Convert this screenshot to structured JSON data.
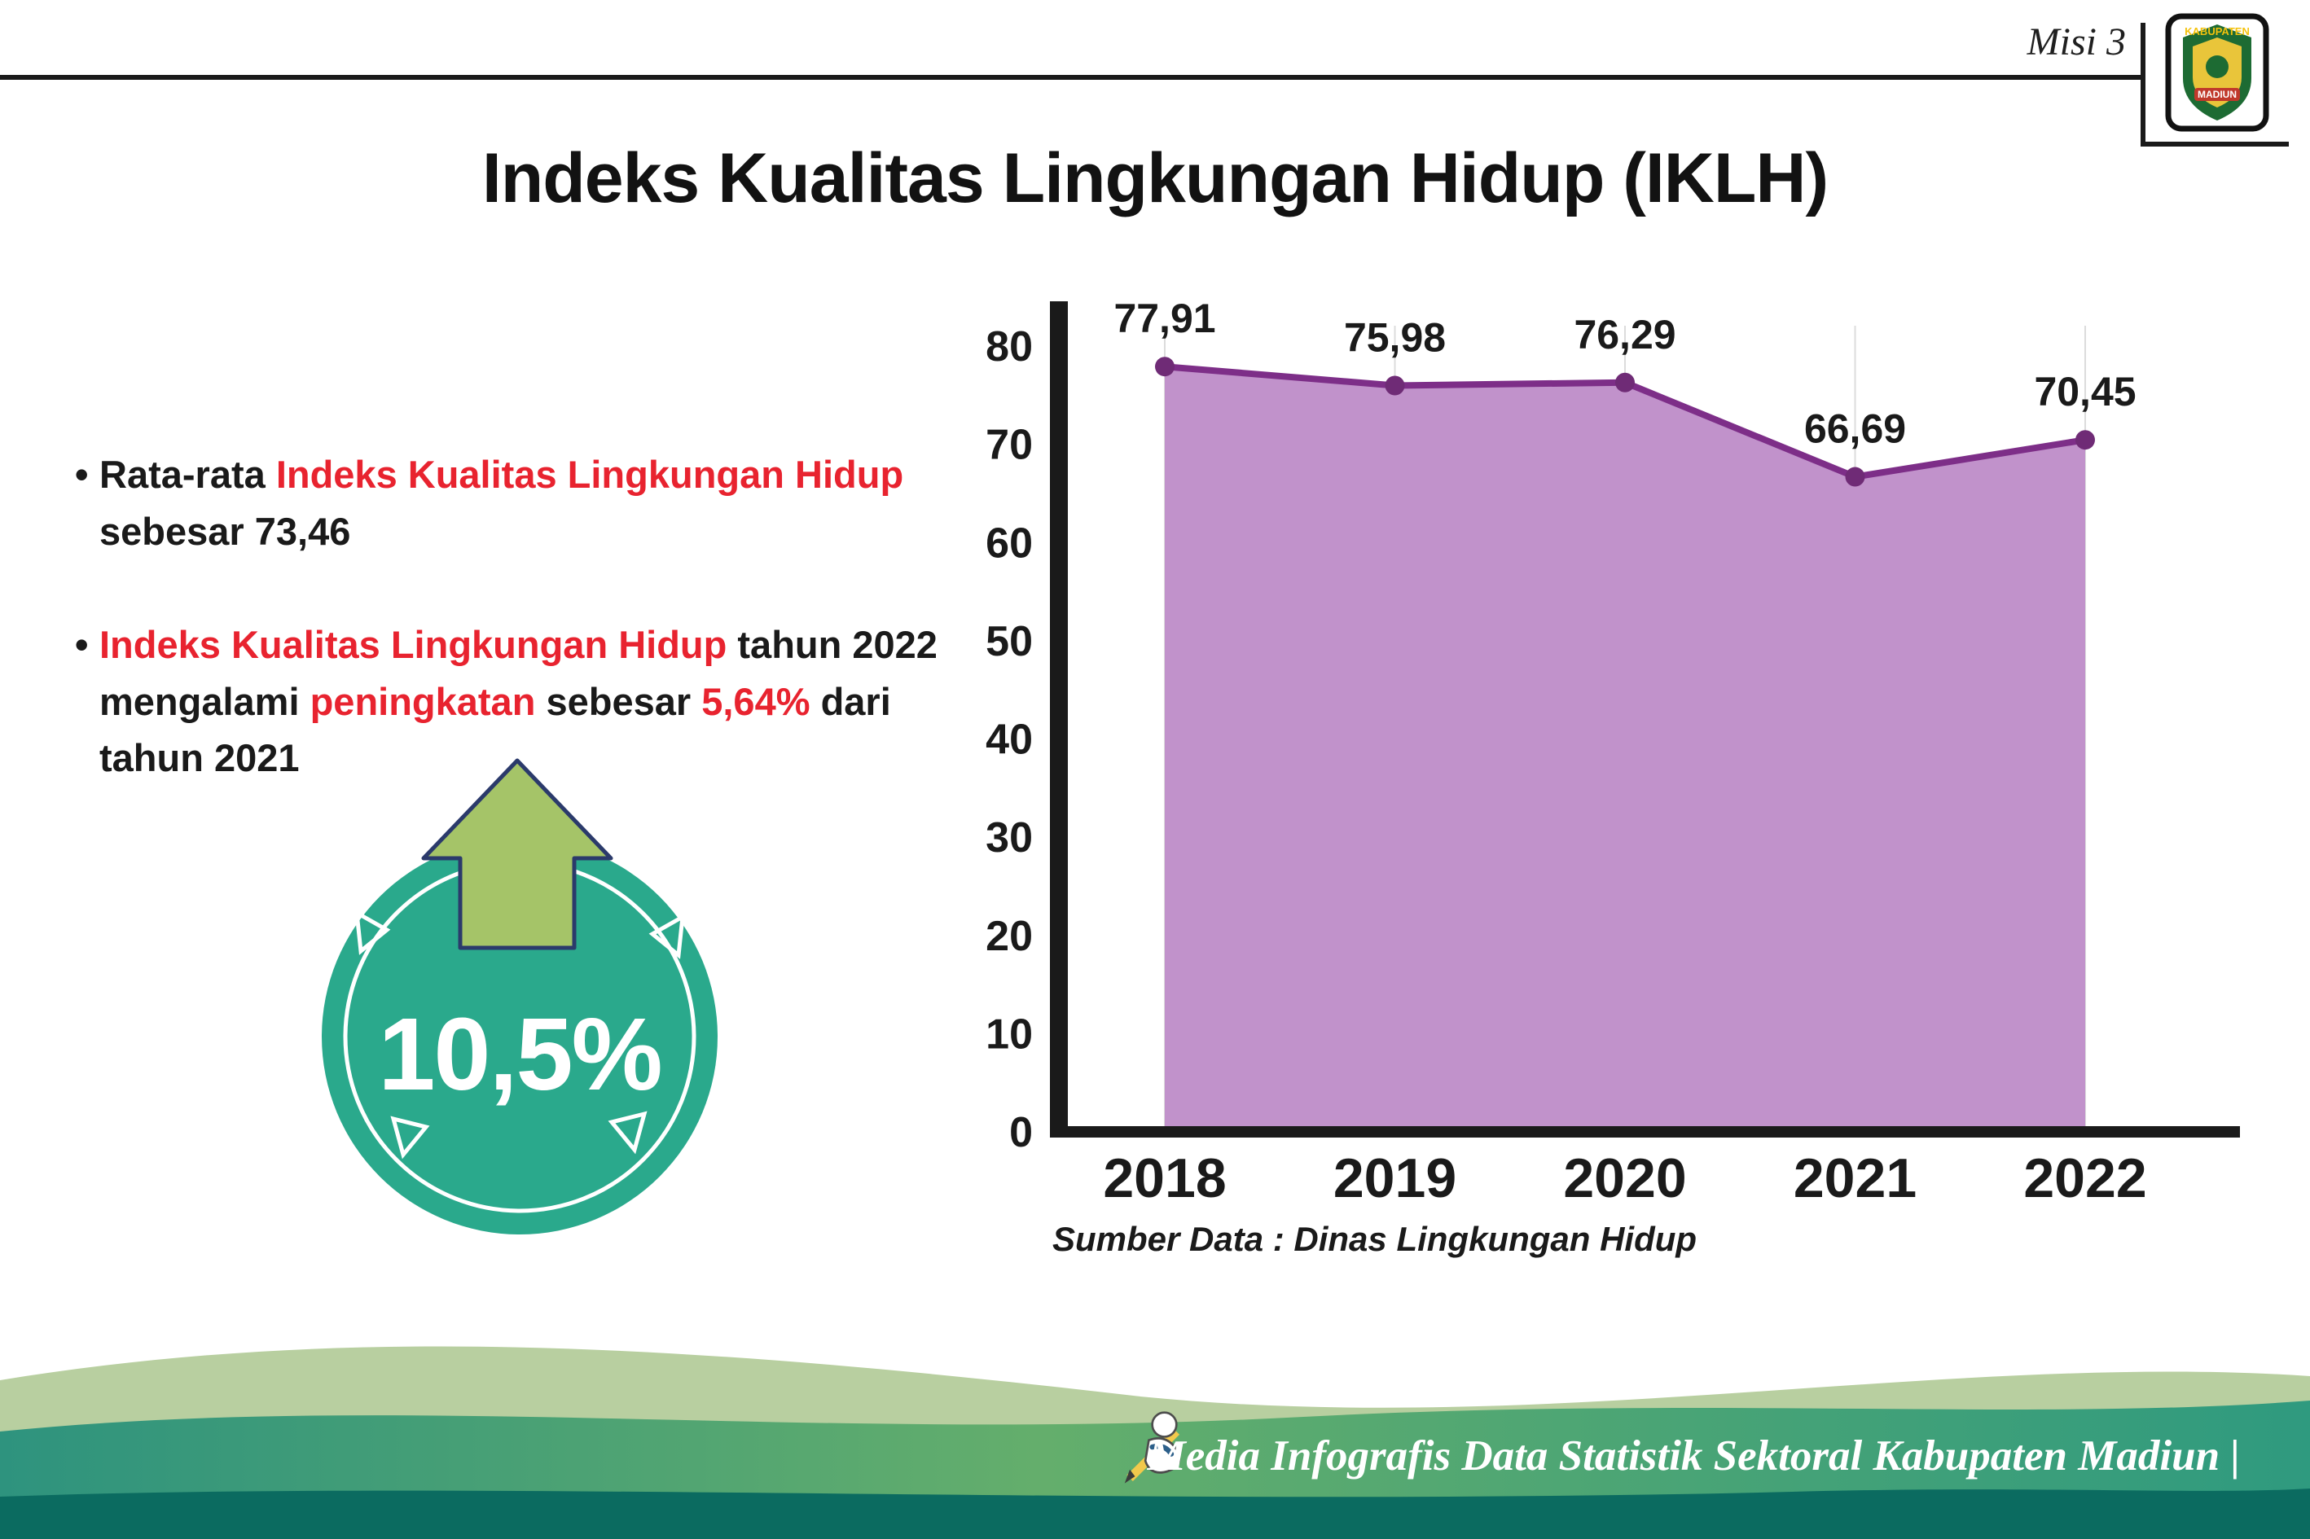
{
  "header": {
    "misi_label": "Misi 3",
    "title": "Indeks Kualitas Lingkungan Hidup (IKLH)",
    "logo": {
      "top_text": "KABUPATEN",
      "bottom_text": "MADIUN"
    }
  },
  "bullets": [
    {
      "segments": [
        {
          "text": "Rata-rata ",
          "color": "dark"
        },
        {
          "text": "Indeks Kualitas Lingkungan Hidup",
          "color": "red"
        },
        {
          "text": " sebesar 73,46",
          "color": "dark"
        }
      ]
    },
    {
      "segments": [
        {
          "text": "Indeks Kualitas Lingkungan Hidup",
          "color": "red"
        },
        {
          "text": " tahun 2022 mengalami ",
          "color": "dark"
        },
        {
          "text": "peningkatan",
          "color": "red"
        },
        {
          "text": " sebesar ",
          "color": "dark"
        },
        {
          "text": "5,64%",
          "color": "red"
        },
        {
          "text": " dari tahun 2021",
          "color": "dark"
        }
      ]
    }
  ],
  "badge": {
    "value": "10,5%"
  },
  "chart_data": {
    "type": "area",
    "title": "Indeks Kualitas Lingkungan Hidup (IKLH)",
    "categories": [
      "2018",
      "2019",
      "2020",
      "2021",
      "2022"
    ],
    "values": [
      77.91,
      75.98,
      76.29,
      66.69,
      70.45
    ],
    "value_labels": [
      "77,91",
      "75,98",
      "76,29",
      "66,69",
      "70,45"
    ],
    "xlabel": "",
    "ylabel": "",
    "ylim": [
      0,
      80
    ],
    "yticks": [
      0,
      10,
      20,
      30,
      40,
      50,
      60,
      70,
      80
    ],
    "grid": "vertical",
    "legend": "none",
    "colors": {
      "area": "#C192CB",
      "line": "#7D2E88",
      "dot": "#6F2B76",
      "axis": "#1a1a1a"
    },
    "source": "Sumber Data : Dinas Lingkungan Hidup"
  },
  "colors": {
    "accent_red": "#e8232f",
    "badge_teal": "#2AA98C",
    "arrow_green": "#A5C468",
    "footer_dark": "#0B6B60"
  },
  "footer": {
    "text": "Media Infografis Data Statistik Sektoral Kabupaten Madiun |"
  }
}
